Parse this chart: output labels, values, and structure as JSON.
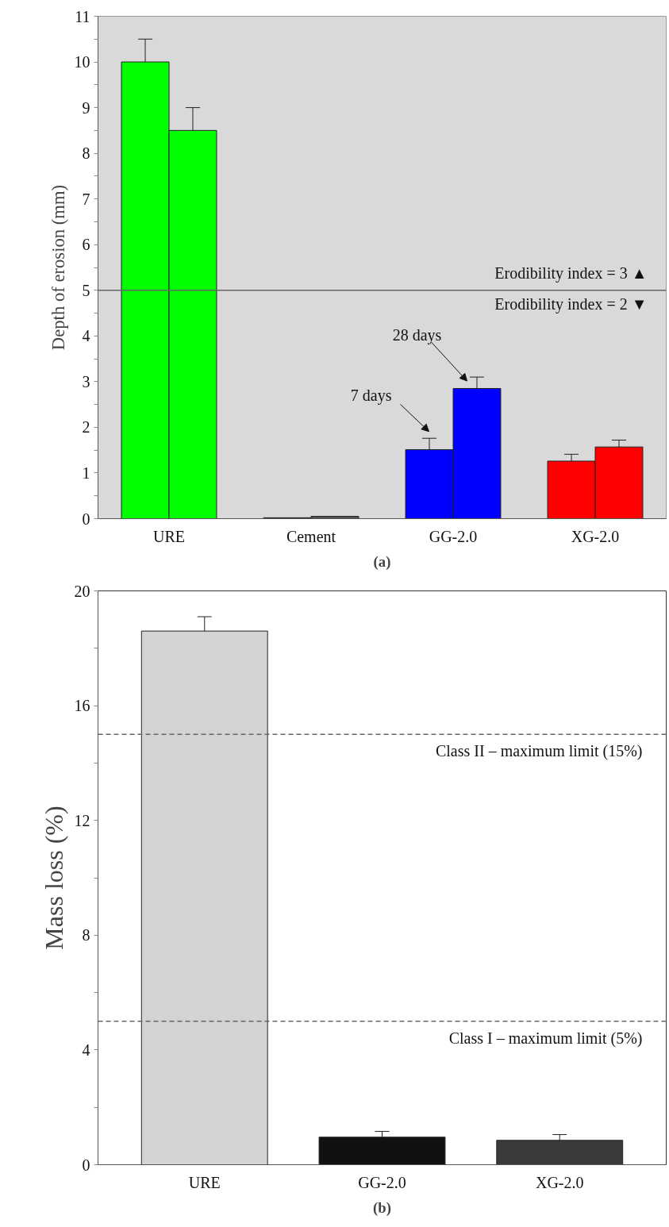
{
  "chart_data": [
    {
      "type": "bar",
      "ylabel": "Depth of erosion (mm)",
      "categories": [
        "URE",
        "Cement",
        "GG-2.0",
        "XG-2.0"
      ],
      "series": [
        {
          "colors": [
            "#00ff00",
            "#222222",
            "#0000ff",
            "#ff0000"
          ],
          "values": [
            10.0,
            0.02,
            1.51,
            1.26
          ],
          "errors": [
            0.5,
            null,
            0.25,
            0.15
          ]
        },
        {
          "colors": [
            "#00ff00",
            "#555555",
            "#0000ff",
            "#ff0000"
          ],
          "values": [
            8.5,
            0.05,
            2.85,
            1.57
          ],
          "errors": [
            0.5,
            null,
            0.25,
            0.15
          ]
        }
      ],
      "ylim": [
        0,
        11
      ],
      "yticks": [
        0,
        {
          "value": 0.5,
          "label": null
        },
        1,
        {
          "value": 1.5,
          "label": null
        },
        2,
        {
          "value": 2.5,
          "label": null
        },
        3,
        {
          "value": 3.5,
          "label": null
        },
        4,
        {
          "value": 4.5,
          "label": null
        },
        5,
        {
          "value": 5.5,
          "label": null
        },
        6,
        {
          "value": 6.5,
          "label": null
        },
        7,
        {
          "value": 7.5,
          "label": null
        },
        8,
        {
          "value": 8.5,
          "label": null
        },
        9,
        {
          "value": 9.5,
          "label": null
        },
        10,
        {
          "value": 10.5,
          "label": null
        },
        11
      ],
      "ref_lines": [
        {
          "axis": "y",
          "value": 5,
          "color": "#666666",
          "line_style": "solid"
        }
      ],
      "annotations": [
        "Erodibility index = 3 ▲",
        "Erodibility index = 2 ▼",
        "7 days",
        "28 days",
        "(a)"
      ]
    },
    {
      "type": "bar",
      "ylabel": "Mass loss (%)",
      "categories": [
        "URE",
        "GG-2.0",
        "XG-2.0"
      ],
      "series": [
        {
          "colors": [
            "#d3d3d3",
            "#111111",
            "#3a3a3a"
          ],
          "values": [
            18.6,
            0.96,
            0.85
          ],
          "errors": [
            0.5,
            0.2,
            0.2
          ]
        }
      ],
      "ylim": [
        0,
        20
      ],
      "yticks": [
        0,
        {
          "value": 2,
          "label": null
        },
        4,
        {
          "value": 6,
          "label": null
        },
        8,
        {
          "value": 10,
          "label": null
        },
        12,
        {
          "value": 14,
          "label": null
        },
        16,
        {
          "value": 18,
          "label": null
        },
        20
      ],
      "ref_lines": [
        {
          "axis": "y",
          "value": 15,
          "label": "Class II – maximum limit (15%)",
          "color": "#666666",
          "line_style": "dashed"
        },
        {
          "axis": "y",
          "value": 5,
          "label": "Class I – maximum limit (5%)",
          "color": "#666666",
          "line_style": "dashed"
        }
      ],
      "annotations": [
        "(b)"
      ]
    }
  ]
}
